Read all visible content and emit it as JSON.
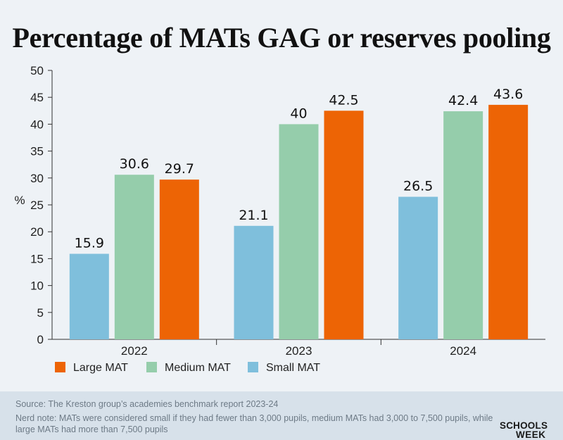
{
  "chart_data": {
    "type": "bar",
    "title": "Percentage of MATs GAG or reserves pooling",
    "ylabel": "%",
    "xlabel": "",
    "ylim": [
      0,
      50
    ],
    "yticks": [
      0,
      5,
      10,
      15,
      20,
      25,
      30,
      35,
      40,
      45,
      50
    ],
    "categories": [
      "2022",
      "2023",
      "2024"
    ],
    "series": [
      {
        "name": "Small MAT",
        "color": "#7fbfdc",
        "values": [
          15.9,
          21.1,
          26.5
        ],
        "labels": [
          "15.9",
          "21.1",
          "26.5"
        ]
      },
      {
        "name": "Medium MAT",
        "color": "#95cdab",
        "values": [
          30.6,
          40,
          42.4
        ],
        "labels": [
          "30.6",
          "40",
          "42.4"
        ]
      },
      {
        "name": "Large MAT",
        "color": "#ed6405",
        "values": [
          29.7,
          42.5,
          43.6
        ],
        "labels": [
          "29.7",
          "42.5",
          "43.6"
        ]
      }
    ],
    "legend": [
      "Large MAT",
      "Medium MAT",
      "Small MAT"
    ],
    "legend_position": "bottom-left"
  },
  "footer": {
    "source": "Source: The Kreston group’s academies benchmark report 2023-24",
    "note_line1": "Nerd note: MATs were considered small if they had fewer than 3,000 pupils, medium MATs had 3,000 to 7,500 pupils, while",
    "note_line2": "large MATs had more than 7,500 pupils",
    "logo_line1": "SCHOOLS",
    "logo_line2": "WEEK"
  }
}
